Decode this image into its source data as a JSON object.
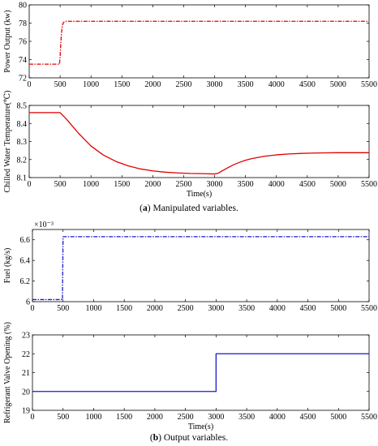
{
  "captions": {
    "a": {
      "letter": "a",
      "text": "Manipulated variables."
    },
    "b": {
      "letter": "b",
      "text": "Output variables."
    }
  },
  "chart_data": [
    {
      "type": "line",
      "ylabel": "Power Output (kw)",
      "xlabel": "",
      "xlim": [
        0,
        5500
      ],
      "ylim": [
        72,
        80
      ],
      "xticks": [
        0,
        500,
        1000,
        1500,
        2000,
        2500,
        3000,
        3500,
        4000,
        4500,
        5000,
        5500
      ],
      "yticks": [
        72,
        74,
        76,
        78,
        80
      ],
      "grid": false,
      "exponent_label": "",
      "line_style": "dash-dot",
      "color": "#e00000",
      "series": [
        {
          "x": [
            0,
            490,
            500,
            510,
            520,
            530,
            540,
            550,
            560,
            580,
            600,
            5500
          ],
          "y": [
            73.5,
            73.5,
            74.3,
            75.6,
            76.7,
            77.4,
            77.8,
            78.0,
            78.1,
            78.15,
            78.2,
            78.2
          ]
        }
      ]
    },
    {
      "type": "line",
      "ylabel": "Chilled Water Temperature(℃)",
      "xlabel": "Time(s)",
      "xlim": [
        0,
        5500
      ],
      "ylim": [
        8.1,
        8.5
      ],
      "xticks": [
        0,
        500,
        1000,
        1500,
        2000,
        2500,
        3000,
        3500,
        4000,
        4500,
        5000,
        5500
      ],
      "yticks": [
        8.1,
        8.2,
        8.3,
        8.4,
        8.5
      ],
      "grid": false,
      "exponent_label": "",
      "line_style": "solid",
      "color": "#e00000",
      "series": [
        {
          "x": [
            0,
            500,
            600,
            700,
            800,
            900,
            1000,
            1200,
            1400,
            1600,
            1800,
            2000,
            2200,
            2400,
            2600,
            2800,
            3000,
            3050,
            3100,
            3200,
            3300,
            3400,
            3500,
            3600,
            3800,
            4000,
            4200,
            4400,
            4600,
            4800,
            5000,
            5500
          ],
          "y": [
            8.46,
            8.46,
            8.425,
            8.385,
            8.345,
            8.31,
            8.275,
            8.225,
            8.19,
            8.165,
            8.148,
            8.137,
            8.13,
            8.126,
            8.123,
            8.122,
            8.12,
            8.123,
            8.133,
            8.152,
            8.17,
            8.184,
            8.196,
            8.205,
            8.218,
            8.226,
            8.231,
            8.234,
            8.236,
            8.237,
            8.238,
            8.238
          ]
        }
      ]
    },
    {
      "type": "line",
      "ylabel": "Fuel (kg/s)",
      "xlabel": "",
      "xlim": [
        0,
        5500
      ],
      "ylim": [
        6.0,
        6.7
      ],
      "xticks": [
        0,
        500,
        1000,
        1500,
        2000,
        2500,
        3000,
        3500,
        4000,
        4500,
        5000,
        5500
      ],
      "yticks": [
        6,
        6.2,
        6.4,
        6.6
      ],
      "ytick_labels": [
        "6",
        "6.2",
        "6.4",
        "6.6"
      ],
      "grid": false,
      "exponent_label": "×10⁻³",
      "line_style": "dash-dot",
      "color": "#1a1acc",
      "series": [
        {
          "x": [
            0,
            490,
            500,
            5500
          ],
          "y": [
            6.02,
            6.02,
            6.63,
            6.63
          ]
        }
      ]
    },
    {
      "type": "line",
      "ylabel": "Refrigerant Valve Opening (%)",
      "xlabel": "Time(s)",
      "xlim": [
        0,
        5500
      ],
      "ylim": [
        19,
        23
      ],
      "xticks": [
        0,
        500,
        1000,
        1500,
        2000,
        2500,
        3000,
        3500,
        4000,
        4500,
        5000,
        5500
      ],
      "yticks": [
        19,
        20,
        21,
        22,
        23
      ],
      "grid": false,
      "exponent_label": "",
      "line_style": "solid",
      "color": "#1a1acc",
      "series": [
        {
          "x": [
            0,
            3000,
            3000,
            5500
          ],
          "y": [
            20,
            20,
            22,
            22
          ]
        }
      ]
    }
  ]
}
